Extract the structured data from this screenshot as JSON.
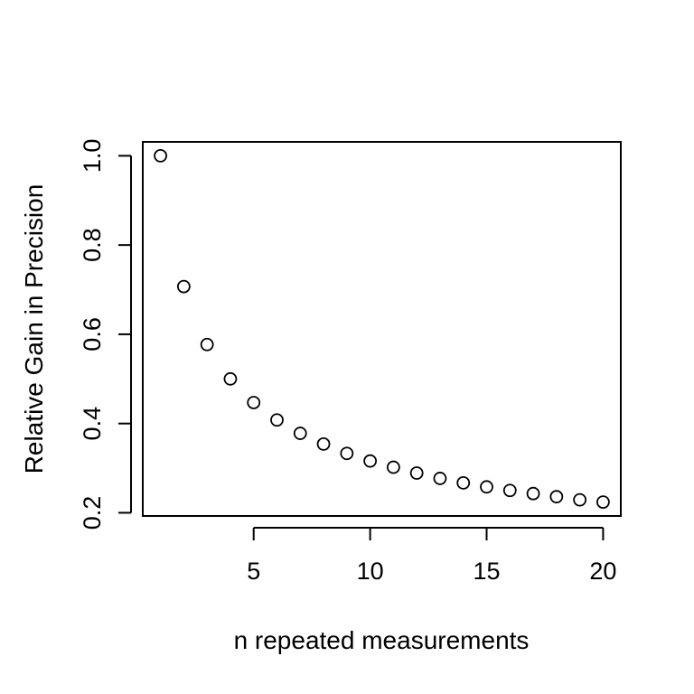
{
  "chart_data": {
    "type": "scatter",
    "title": "",
    "xlabel": "n repeated measurements",
    "ylabel": "Relative Gain in Precision",
    "x": [
      1,
      2,
      3,
      4,
      5,
      6,
      7,
      8,
      9,
      10,
      11,
      12,
      13,
      14,
      15,
      16,
      17,
      18,
      19,
      20
    ],
    "y": [
      1.0,
      0.707,
      0.577,
      0.5,
      0.447,
      0.408,
      0.378,
      0.354,
      0.333,
      0.316,
      0.302,
      0.289,
      0.277,
      0.267,
      0.258,
      0.25,
      0.243,
      0.236,
      0.229,
      0.224
    ],
    "xticks": [
      5,
      10,
      15,
      20
    ],
    "xtick_labels": [
      "5",
      "10",
      "15",
      "20"
    ],
    "yticks": [
      0.2,
      0.4,
      0.6,
      0.8,
      1.0
    ],
    "ytick_labels": [
      "0.2",
      "0.4",
      "0.6",
      "0.8",
      "1.0"
    ],
    "xlim": [
      0.24,
      20.76
    ],
    "ylim": [
      0.1928,
      1.0312
    ],
    "grid": false,
    "marker": "open-circle",
    "marker_color": "#000000"
  }
}
